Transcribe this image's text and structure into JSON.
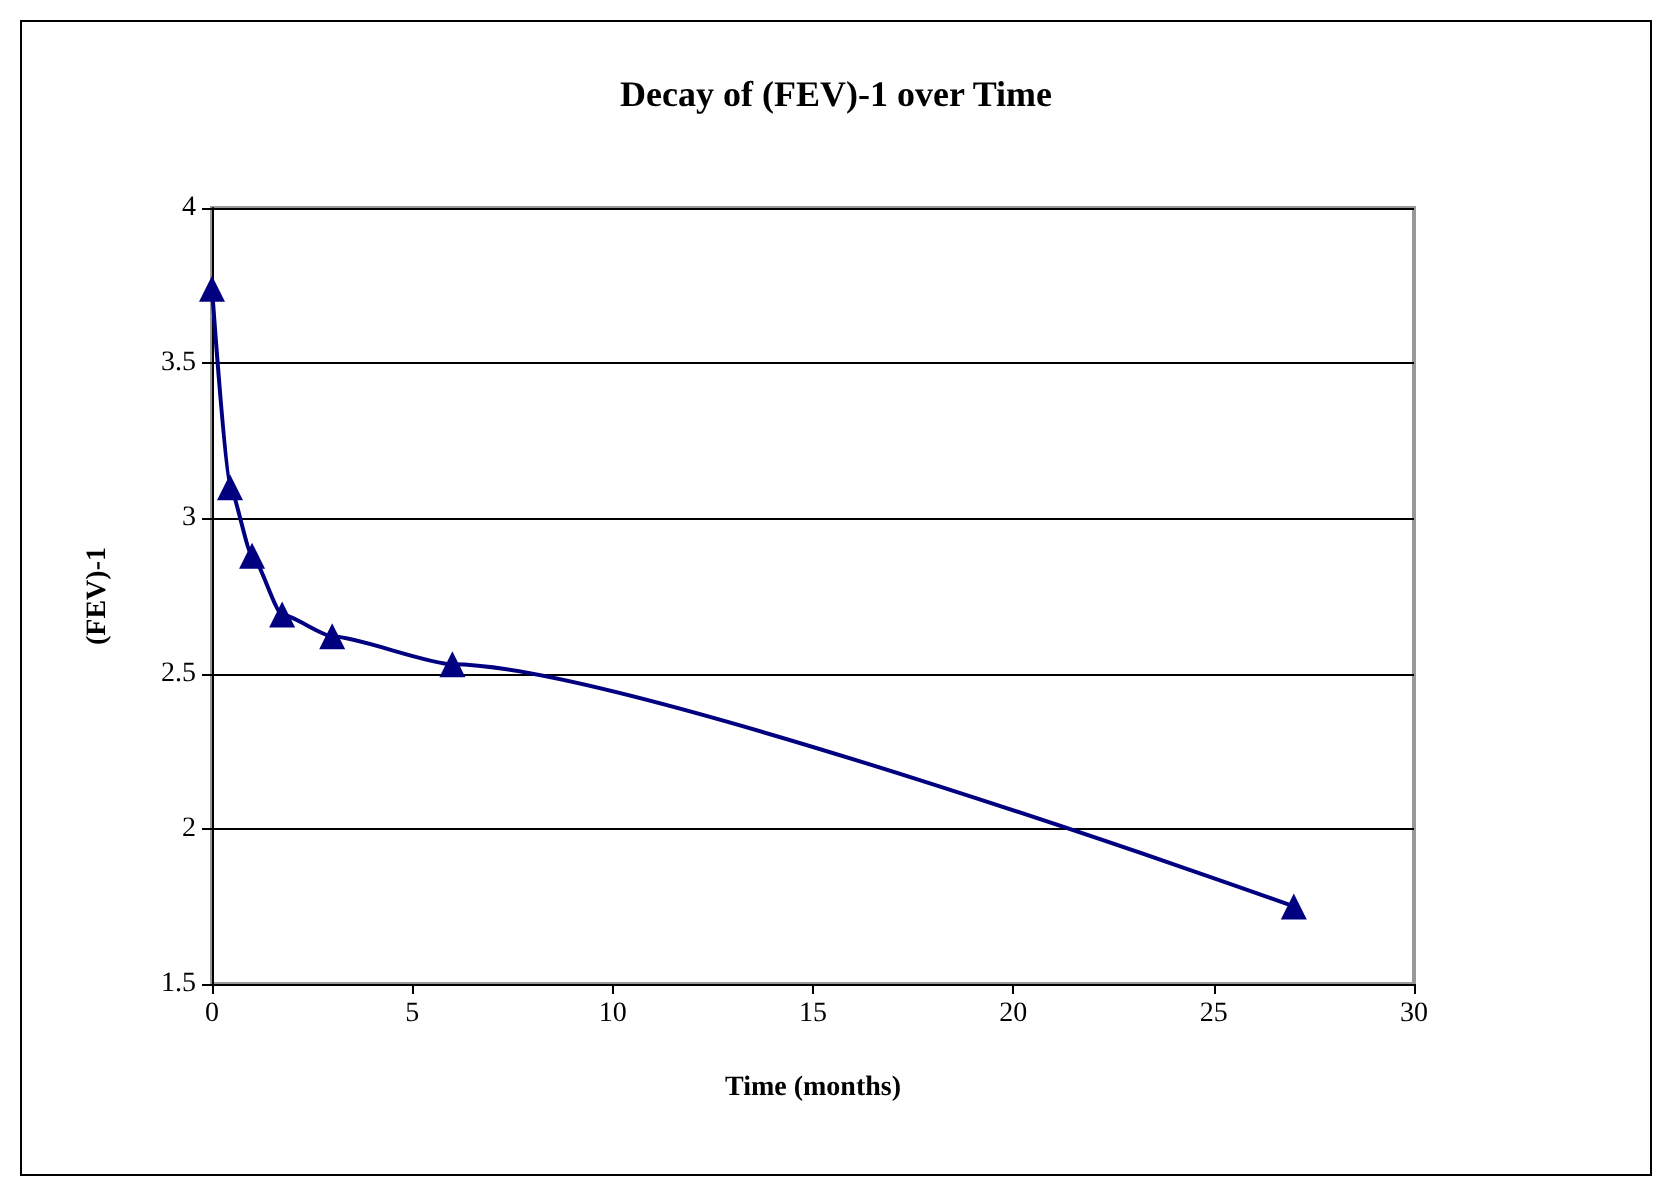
{
  "chart_data": {
    "type": "line",
    "title": "Decay of (FEV)-1 over Time",
    "xlabel": "Time (months)",
    "ylabel": "(FEV)-1",
    "x": [
      0,
      0.45,
      1,
      1.75,
      3,
      6,
      27
    ],
    "series": [
      {
        "color": "#000080",
        "values": [
          3.74,
          3.1,
          2.88,
          2.69,
          2.62,
          2.53,
          1.75
        ]
      }
    ],
    "xlim": [
      0,
      30
    ],
    "xticks": [
      0,
      5,
      10,
      15,
      20,
      25,
      30
    ],
    "ylim": [
      1.5,
      4
    ],
    "yticks": [
      1.5,
      2,
      2.5,
      3,
      3.5,
      4
    ],
    "grid": "y",
    "marker": "triangle",
    "line_style": "solid"
  }
}
